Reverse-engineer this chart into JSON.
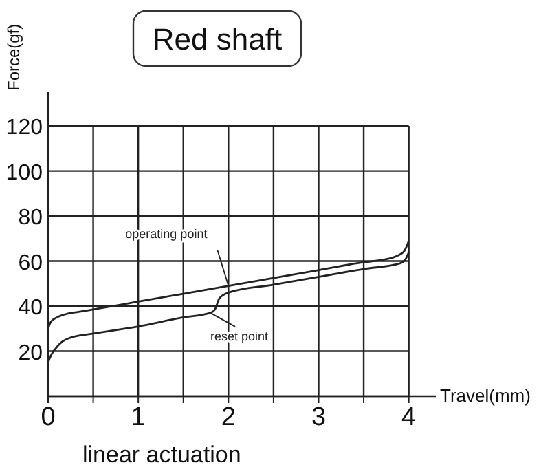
{
  "chart_data": {
    "type": "line",
    "title": "Red shaft",
    "xlabel": "Travel(mm)",
    "ylabel": "Force(gf)",
    "xlim": [
      0,
      4.3
    ],
    "ylim": [
      0,
      135
    ],
    "xticks": [
      0,
      {
        "value": 0.5,
        "label": null
      },
      1,
      {
        "value": 1.5,
        "label": null
      },
      2,
      {
        "value": 2.5,
        "label": null
      },
      3,
      {
        "value": 3.5,
        "label": null
      },
      4
    ],
    "yticks": [
      {
        "value": 0,
        "label": null
      },
      20,
      40,
      60,
      80,
      100,
      120
    ],
    "grid": true,
    "marker": "none",
    "line_style": "solid",
    "series": [
      {
        "color": "#222222",
        "x": [
          0,
          0.03,
          0.1,
          0.2,
          0.35,
          0.5,
          1,
          1.5,
          2,
          2.5,
          3,
          3.5,
          3.7,
          3.85,
          3.95,
          4
        ],
        "values": [
          30,
          33,
          35,
          36.5,
          37.5,
          38.5,
          42,
          45.5,
          49,
          52.5,
          56,
          59.5,
          60.5,
          62,
          64.5,
          69
        ]
      },
      {
        "color": "#222222",
        "x": [
          0,
          0.03,
          0.08,
          0.15,
          0.25,
          0.45,
          1,
          1.5,
          1.8,
          1.85,
          1.9,
          2,
          2.5,
          3,
          3.5,
          3.9,
          3.95,
          4
        ],
        "values": [
          15,
          18,
          21,
          24,
          26,
          27.5,
          31,
          35,
          37,
          38.5,
          43.5,
          46,
          49.5,
          53,
          56.5,
          59,
          60,
          64
        ]
      }
    ],
    "annotations": [
      {
        "text": "operating point",
        "x": 2,
        "y": 49
      },
      {
        "text": "reset point",
        "x": 1.8,
        "y": 37
      },
      "linear actuation"
    ]
  }
}
